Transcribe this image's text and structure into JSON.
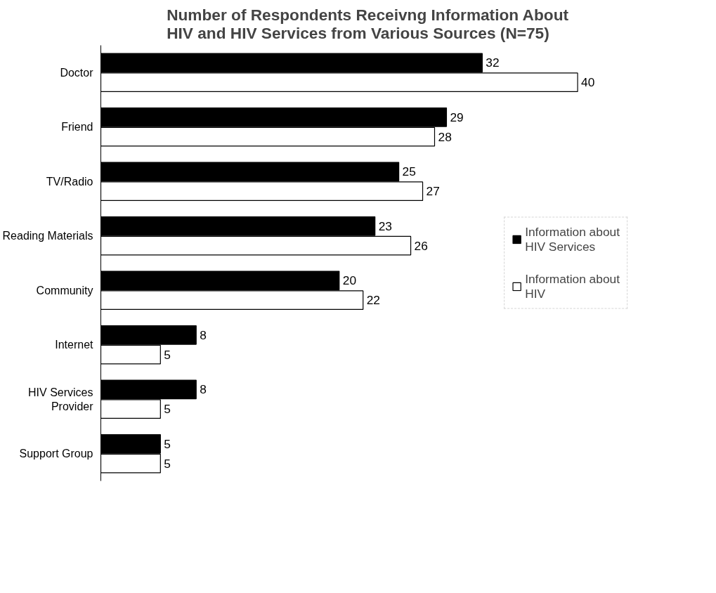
{
  "chart_data": {
    "type": "bar",
    "orientation": "horizontal",
    "title": "Number of Respondents Receivng Information About HIV and HIV Services from Various Sources (N=75)",
    "categories": [
      "Doctor",
      "Friend",
      "TV/Radio",
      "Reading Materials",
      "Community",
      "Internet",
      "HIV Services Provider",
      "Support Group"
    ],
    "series": [
      {
        "name": "Information about HIV Services",
        "color": "#000000",
        "values": [
          32,
          29,
          25,
          23,
          20,
          8,
          8,
          5
        ]
      },
      {
        "name": "Information about HIV",
        "color": "#ffffff",
        "values": [
          40,
          28,
          27,
          26,
          22,
          5,
          5,
          5
        ]
      }
    ],
    "data_labels": true,
    "legend": "right",
    "grid": false
  }
}
